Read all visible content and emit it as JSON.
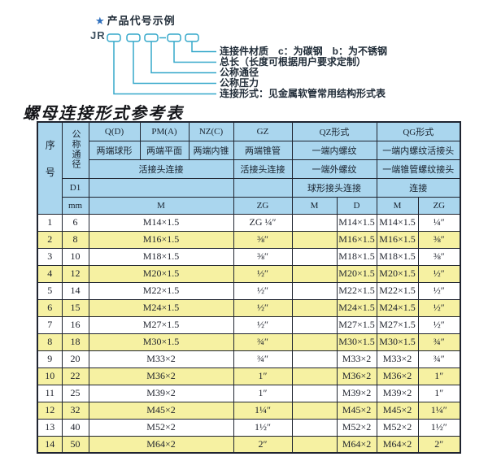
{
  "colors": {
    "header_blue": "#aad6ee",
    "row_yellow": "#f6f1a2",
    "row_white": "#ffffff",
    "line_cyan": "#35a8ca",
    "star_blue": "#2f6fbd",
    "border_dark": "#1f2430"
  },
  "diagram": {
    "star": "★",
    "heading": "产品代号示例",
    "code_prefix": "JR",
    "labels": [
      "连接件材质　c：为碳钢　b：为不锈钢",
      "总长（长度可根据用户要求定制）",
      "公称通径",
      "公称压力",
      "连接形式：见金属软管常用结构形式表"
    ]
  },
  "table": {
    "title": "螺母连接形式参考表",
    "header": {
      "seq": "序号",
      "diameter": "公称通径",
      "d1": "D1",
      "mm": "mm",
      "groups": [
        "Q(D)",
        "PM(A)",
        "NZ(C)",
        "GZ",
        "QZ形式",
        "QG形式"
      ],
      "styles": [
        "两端球形",
        "两端平面",
        "两端内锥",
        "两端锥管",
        "一端内螺纹",
        "一端内螺纹活接头"
      ],
      "connections": [
        "活接头连接",
        "活接头连接",
        "一端外螺纹",
        "一端锥管螺纹接头"
      ],
      "joint_row": [
        "球形接头连接",
        "连接"
      ],
      "units": [
        "M",
        "ZG",
        "M",
        "D",
        "M",
        "ZG"
      ]
    },
    "rows": [
      [
        "1",
        "6",
        "M14×1.5",
        "ZG ¼″",
        "",
        "M14×1.5",
        "M14×1.5",
        "¼″"
      ],
      [
        "2",
        "8",
        "M16×1.5",
        "⅜″",
        "",
        "M16×1.5",
        "M16×1.5",
        "⅜″"
      ],
      [
        "3",
        "10",
        "M18×1.5",
        "⅜″",
        "",
        "M18×1.5",
        "M18×1.5",
        "⅜″"
      ],
      [
        "4",
        "12",
        "M20×1.5",
        "½″",
        "",
        "M20×1.5",
        "M20×1.5",
        "½″"
      ],
      [
        "5",
        "14",
        "M22×1.5",
        "½″",
        "",
        "M22×1.5",
        "M22×1.5",
        "½″"
      ],
      [
        "6",
        "15",
        "M24×1.5",
        "½″",
        "",
        "M24×1.5",
        "M24×1.5",
        "½″"
      ],
      [
        "7",
        "16",
        "M27×1.5",
        "½″",
        "",
        "M27×1.5",
        "M27×1.5",
        "½″"
      ],
      [
        "8",
        "18",
        "M30×1.5",
        "¾″",
        "",
        "M30×1.5",
        "M30×1.5",
        "¾″"
      ],
      [
        "9",
        "20",
        "M33×2",
        "¾″",
        "",
        "M33×2",
        "M33×2",
        "¾″"
      ],
      [
        "10",
        "22",
        "M36×2",
        "1″",
        "",
        "M36×2",
        "M36×2",
        "1″"
      ],
      [
        "11",
        "25",
        "M39×2",
        "1″",
        "",
        "M39×2",
        "M39×2",
        "1″"
      ],
      [
        "12",
        "32",
        "M45×2",
        "1¼″",
        "",
        "M45×2",
        "M45×2",
        "1¼″"
      ],
      [
        "13",
        "40",
        "M52×2",
        "1½″",
        "",
        "M52×2",
        "M52×2",
        "1½″"
      ],
      [
        "14",
        "50",
        "M64×2",
        "2″",
        "",
        "M64×2",
        "M64×2",
        "2″"
      ]
    ]
  }
}
